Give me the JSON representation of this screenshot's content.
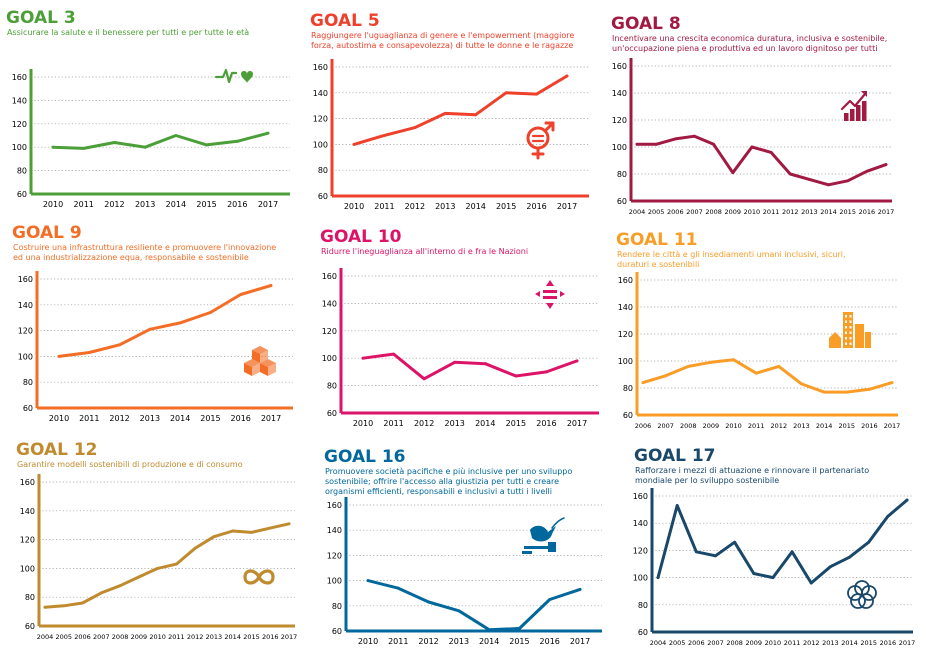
{
  "chart_data": [
    {
      "type": "line",
      "title": "GOAL 3",
      "subtitle": [
        "Assicurare la salute e il benessere per tutti e per tutte le età"
      ],
      "color": "#4c9f38",
      "icon": "heartbeat-icon",
      "categories": [
        "2010",
        "2011",
        "2012",
        "2013",
        "2014",
        "2015",
        "2016",
        "2017"
      ],
      "values": [
        100,
        99,
        104,
        100,
        110,
        102,
        105,
        112
      ],
      "ylim": [
        60,
        160
      ],
      "yticks": [
        60,
        80,
        100,
        120,
        140,
        160
      ],
      "grid": true
    },
    {
      "type": "line",
      "title": "GOAL 5",
      "subtitle": [
        "Raggiungere l'uguaglianza di genere e l'empowerment (maggiore",
        "forza, autostima e consapevolezza) di tutte le donne e le ragazze"
      ],
      "color": "#ef402b",
      "icon": "gender-equality-icon",
      "categories": [
        "2010",
        "2011",
        "2012",
        "2013",
        "2014",
        "2015",
        "2016",
        "2017"
      ],
      "values": [
        100,
        107,
        113,
        124,
        123,
        140,
        139,
        153
      ],
      "ylim": [
        60,
        160
      ],
      "yticks": [
        60,
        80,
        100,
        120,
        140,
        160
      ],
      "grid": true
    },
    {
      "type": "line",
      "title": "GOAL 8",
      "subtitle": [
        "Incentivare una crescita economica duratura, inclusiva e sostenibile,",
        "un'occupazione piena e produttiva ed un lavoro dignitoso per tutti"
      ],
      "color": "#a21942",
      "icon": "economic-growth-icon",
      "categories": [
        "2004",
        "2005",
        "2006",
        "2007",
        "2008",
        "2009",
        "2010",
        "2011",
        "2012",
        "2013",
        "2014",
        "2015",
        "2016",
        "2017"
      ],
      "values": [
        102,
        102,
        106,
        108,
        102,
        81,
        100,
        96,
        80,
        76,
        72,
        75,
        82,
        87
      ],
      "ylim": [
        60,
        160
      ],
      "yticks": [
        60,
        80,
        100,
        120,
        140,
        160
      ],
      "grid": true
    },
    {
      "type": "line",
      "title": "GOAL 9",
      "subtitle": [
        "Costruire una infrastruttura resiliente e promuovere l'innovazione",
        "ed una industrializzazione equa, responsabile e sostenibile"
      ],
      "color": "#f36d25",
      "icon": "infrastructure-cubes-icon",
      "categories": [
        "2010",
        "2011",
        "2012",
        "2013",
        "2014",
        "2015",
        "2016",
        "2017"
      ],
      "values": [
        100,
        103,
        109,
        121,
        126,
        134,
        148,
        155
      ],
      "ylim": [
        60,
        160
      ],
      "yticks": [
        60,
        80,
        100,
        120,
        140,
        160
      ],
      "grid": true
    },
    {
      "type": "line",
      "title": "GOAL 10",
      "subtitle": [
        "Ridurre l'ineguaglianza all'interno di e fra le Nazioni"
      ],
      "color": "#dd1367",
      "icon": "reduced-inequality-icon",
      "categories": [
        "2010",
        "2011",
        "2012",
        "2013",
        "2014",
        "2015",
        "2016",
        "2017"
      ],
      "values": [
        100,
        103,
        85,
        97,
        96,
        87,
        90,
        98
      ],
      "ylim": [
        60,
        160
      ],
      "yticks": [
        60,
        80,
        100,
        120,
        140,
        160
      ],
      "grid": true
    },
    {
      "type": "line",
      "title": "GOAL 11",
      "subtitle": [
        "Rendere le città e gli insediamenti umani inclusivi, sicuri,",
        "duraturi e sostenibili"
      ],
      "color": "#f99d26",
      "icon": "city-buildings-icon",
      "categories": [
        "2006",
        "2007",
        "2008",
        "2009",
        "2010",
        "2011",
        "2012",
        "2013",
        "2014",
        "2015",
        "2016",
        "2017"
      ],
      "values": [
        84,
        89,
        96,
        99,
        101,
        91,
        96,
        83,
        77,
        77,
        79,
        84
      ],
      "ylim": [
        60,
        160
      ],
      "yticks": [
        60,
        80,
        100,
        120,
        140,
        160
      ],
      "grid": true
    },
    {
      "type": "line",
      "title": "GOAL 12",
      "subtitle": [
        "Garantire modelli sostenibili di produzione e di consumo"
      ],
      "color": "#bf8b2e",
      "icon": "infinity-icon",
      "categories": [
        "2004",
        "2005",
        "2006",
        "2007",
        "2008",
        "2009",
        "2010",
        "2011",
        "2012",
        "2013",
        "2014",
        "2015",
        "2016",
        "2017"
      ],
      "values": [
        73,
        74,
        76,
        83,
        88,
        94,
        100,
        103,
        114,
        122,
        126,
        125,
        128,
        131
      ],
      "ylim": [
        60,
        160
      ],
      "yticks": [
        60,
        80,
        100,
        120,
        140,
        160
      ],
      "grid": true
    },
    {
      "type": "line",
      "title": "GOAL 16",
      "subtitle": [
        "Promuovere società pacifiche e più inclusive per uno sviluppo",
        "sostenibile; offrire l'accesso alla giustizia per tutti e creare",
        "organismi efficienti, responsabili e inclusivi a tutti i livelli"
      ],
      "color": "#00689d",
      "icon": "dove-gavel-icon",
      "categories": [
        "2010",
        "2011",
        "2012",
        "2013",
        "2014",
        "2015",
        "2016",
        "2017"
      ],
      "values": [
        100,
        94,
        83,
        76,
        61,
        62,
        85,
        93
      ],
      "ylim": [
        60,
        160
      ],
      "yticks": [
        60,
        80,
        100,
        120,
        140,
        160
      ],
      "grid": true
    },
    {
      "type": "line",
      "title": "GOAL 17",
      "subtitle": [
        "Rafforzare i mezzi di attuazione e rinnovare il partenariato",
        "mondiale per lo sviluppo sostenibile"
      ],
      "color": "#19486a",
      "icon": "partnership-rings-icon",
      "categories": [
        "2004",
        "2005",
        "2006",
        "2007",
        "2008",
        "2009",
        "2010",
        "2011",
        "2012",
        "2013",
        "2014",
        "2015",
        "2016",
        "2017"
      ],
      "values": [
        100,
        153,
        119,
        116,
        126,
        103,
        100,
        119,
        96,
        108,
        115,
        126,
        145,
        157
      ],
      "ylim": [
        60,
        160
      ],
      "yticks": [
        60,
        80,
        100,
        120,
        140,
        160
      ],
      "grid": true
    }
  ]
}
